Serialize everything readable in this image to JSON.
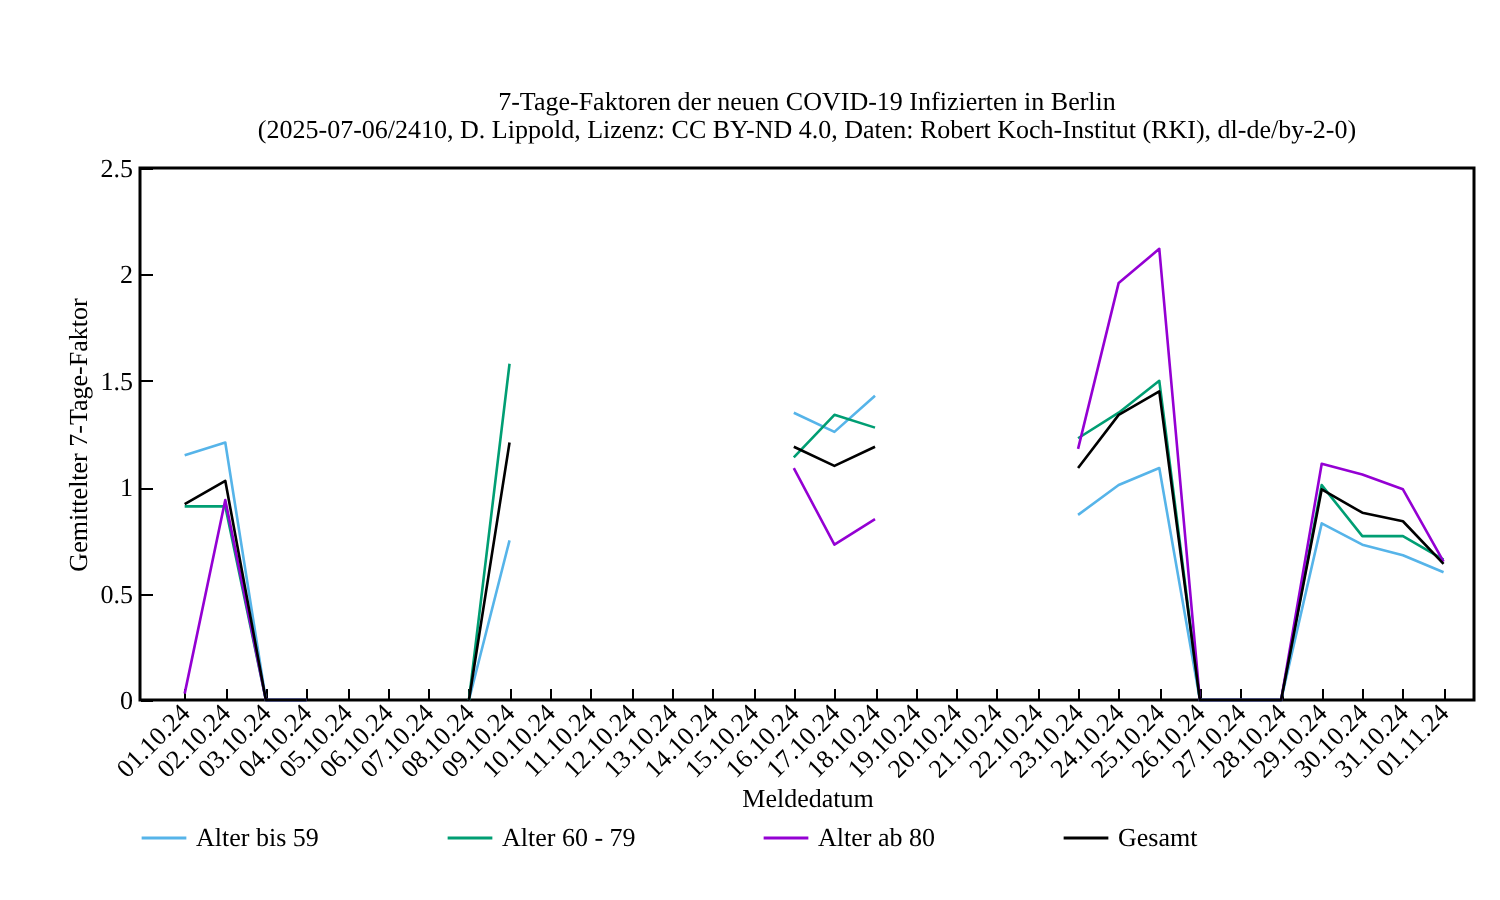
{
  "chart_data": {
    "type": "line",
    "title": "7-Tage-Faktoren der neuen COVID-19 Infizierten in Berlin",
    "subtitle": "(2025-07-06/2410, D. Lippold, Lizenz: CC BY-ND 4.0, Daten: Robert Koch-Institut (RKI), dl-de/by-2-0)",
    "xlabel": "Meldedatum",
    "ylabel": "Gemittelter 7-Tage-Faktor",
    "categories": [
      "01.10.24",
      "02.10.24",
      "03.10.24",
      "04.10.24",
      "05.10.24",
      "06.10.24",
      "07.10.24",
      "08.10.24",
      "09.10.24",
      "10.10.24",
      "11.10.24",
      "12.10.24",
      "13.10.24",
      "14.10.24",
      "15.10.24",
      "16.10.24",
      "17.10.24",
      "18.10.24",
      "19.10.24",
      "20.10.24",
      "21.10.24",
      "22.10.24",
      "23.10.24",
      "24.10.24",
      "25.10.24",
      "26.10.24",
      "27.10.24",
      "28.10.24",
      "29.10.24",
      "30.10.24",
      "31.10.24",
      "01.11.24"
    ],
    "series": [
      {
        "name": "Alter bis 59",
        "color": "#56b4e9",
        "values": [
          1.15,
          1.21,
          0,
          0,
          null,
          null,
          null,
          0,
          0.75,
          null,
          null,
          null,
          null,
          null,
          null,
          1.35,
          1.26,
          1.43,
          null,
          null,
          null,
          null,
          0.87,
          1.01,
          1.09,
          0,
          0,
          0,
          0.83,
          0.73,
          0.68,
          0.6
        ]
      },
      {
        "name": "Alter 60 - 79",
        "color": "#009e73",
        "values": [
          0.91,
          0.91,
          0,
          0,
          null,
          null,
          null,
          0,
          1.58,
          null,
          null,
          null,
          null,
          null,
          null,
          1.14,
          1.34,
          1.28,
          null,
          null,
          null,
          null,
          1.23,
          1.35,
          1.5,
          0,
          0,
          0,
          1.01,
          0.77,
          0.77,
          0.66
        ]
      },
      {
        "name": "Alter ab 80",
        "color": "#9400d3",
        "values": [
          0.03,
          0.94,
          0,
          0,
          null,
          null,
          null,
          null,
          null,
          null,
          null,
          null,
          null,
          null,
          null,
          1.09,
          0.73,
          0.85,
          null,
          null,
          null,
          null,
          1.18,
          1.96,
          2.12,
          0,
          0,
          0,
          1.11,
          1.06,
          0.99,
          0.65
        ]
      },
      {
        "name": "Gesamt",
        "color": "#000000",
        "values": [
          0.92,
          1.03,
          0,
          0,
          null,
          null,
          null,
          0,
          1.21,
          null,
          null,
          null,
          null,
          null,
          null,
          1.19,
          1.1,
          1.19,
          null,
          null,
          null,
          null,
          1.09,
          1.34,
          1.45,
          0,
          0,
          0,
          0.99,
          0.88,
          0.84,
          0.64
        ]
      }
    ],
    "ylim": [
      0,
      2.5
    ],
    "yticks": [
      0,
      0.5,
      1,
      1.5,
      2,
      2.5
    ],
    "legend": "bottom",
    "grid": false,
    "marker": "none",
    "line_style": "solid"
  }
}
